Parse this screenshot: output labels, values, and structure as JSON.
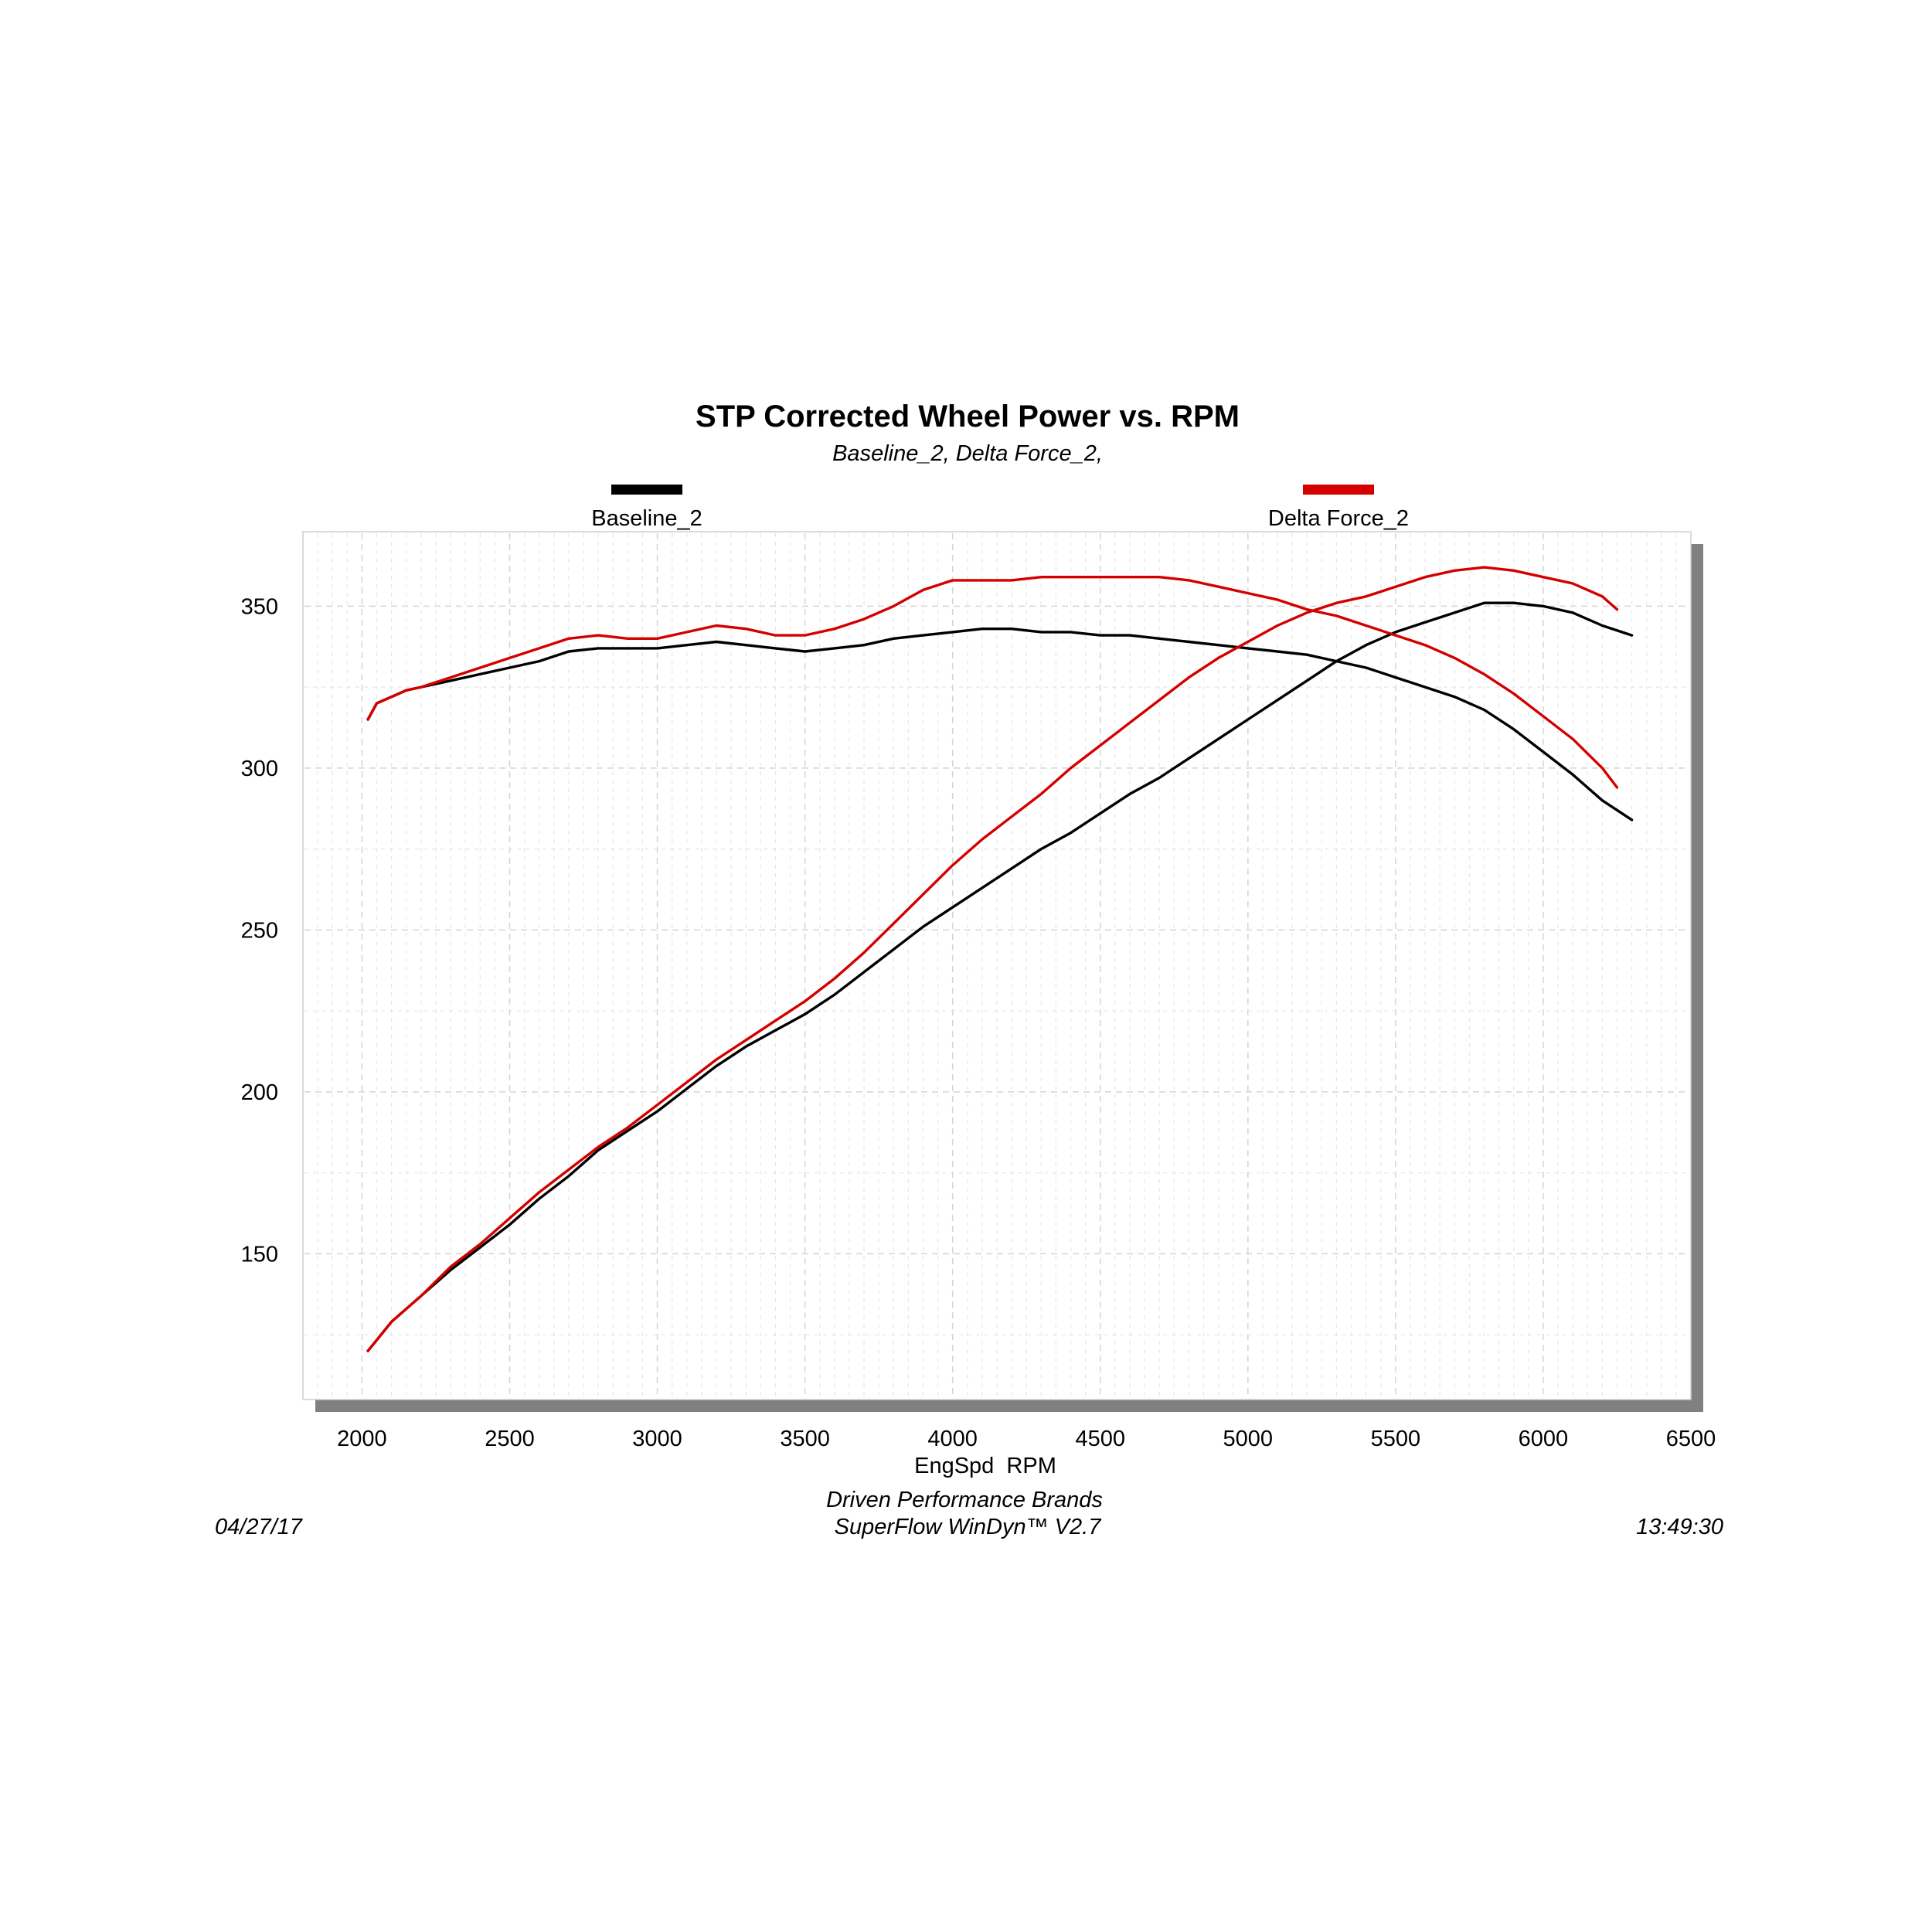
{
  "chart_data": {
    "type": "line",
    "title": "STP Corrected Wheel Power vs. RPM",
    "subtitle": "Baseline_2, Delta Force_2,",
    "xlabel": "EngSpd  RPM",
    "ylabel": "",
    "xlim": [
      1800,
      6500
    ],
    "ylim": [
      105,
      373
    ],
    "x_ticks": [
      2000,
      2500,
      3000,
      3500,
      4000,
      4500,
      5000,
      5500,
      6000,
      6500
    ],
    "y_ticks": [
      150,
      200,
      250,
      300,
      350
    ],
    "grid": true,
    "legend": "top",
    "series": [
      {
        "name": "Baseline_2",
        "color": "#000000",
        "curves": [
          {
            "x": [
              2020,
              2050,
              2100,
              2150,
              2200,
              2300,
              2400,
              2500,
              2600,
              2700,
              2800,
              2900,
              3000,
              3100,
              3200,
              3300,
              3400,
              3500,
              3600,
              3700,
              3800,
              3900,
              4000,
              4100,
              4200,
              4300,
              4400,
              4500,
              4600,
              4700,
              4800,
              4900,
              5000,
              5100,
              5200,
              5300,
              5400,
              5500,
              5600,
              5700,
              5800,
              5900,
              6000,
              6100,
              6200,
              6300
            ],
            "y": [
              315,
              320,
              322,
              324,
              325,
              327,
              329,
              331,
              333,
              336,
              337,
              337,
              337,
              338,
              339,
              338,
              337,
              336,
              337,
              338,
              340,
              341,
              342,
              343,
              343,
              342,
              342,
              341,
              341,
              340,
              339,
              338,
              337,
              336,
              335,
              333,
              331,
              328,
              325,
              322,
              318,
              312,
              305,
              298,
              290,
              284
            ]
          },
          {
            "x": [
              2020,
              2100,
              2200,
              2300,
              2400,
              2500,
              2600,
              2700,
              2800,
              2900,
              3000,
              3100,
              3200,
              3300,
              3400,
              3500,
              3600,
              3700,
              3800,
              3900,
              4000,
              4100,
              4200,
              4300,
              4400,
              4500,
              4600,
              4700,
              4800,
              4900,
              5000,
              5100,
              5200,
              5300,
              5400,
              5500,
              5600,
              5700,
              5800,
              5900,
              6000,
              6100,
              6200,
              6300
            ],
            "y": [
              120,
              129,
              137,
              145,
              152,
              159,
              167,
              174,
              182,
              188,
              194,
              201,
              208,
              214,
              219,
              224,
              230,
              237,
              244,
              251,
              257,
              263,
              269,
              275,
              280,
              286,
              292,
              297,
              303,
              309,
              315,
              321,
              327,
              333,
              338,
              342,
              345,
              348,
              351,
              351,
              350,
              348,
              344,
              341
            ]
          }
        ]
      },
      {
        "name": "Delta Force_2",
        "color": "#d40000",
        "curves": [
          {
            "x": [
              2020,
              2050,
              2100,
              2150,
              2200,
              2300,
              2400,
              2500,
              2600,
              2700,
              2800,
              2900,
              3000,
              3100,
              3200,
              3300,
              3400,
              3500,
              3600,
              3700,
              3800,
              3900,
              4000,
              4100,
              4200,
              4300,
              4400,
              4500,
              4600,
              4700,
              4800,
              4900,
              5000,
              5100,
              5200,
              5300,
              5400,
              5500,
              5600,
              5700,
              5800,
              5900,
              6000,
              6100,
              6200,
              6250
            ],
            "y": [
              315,
              320,
              322,
              324,
              325,
              328,
              331,
              334,
              337,
              340,
              341,
              340,
              340,
              342,
              344,
              343,
              341,
              341,
              343,
              346,
              350,
              355,
              358,
              358,
              358,
              359,
              359,
              359,
              359,
              359,
              358,
              356,
              354,
              352,
              349,
              347,
              344,
              341,
              338,
              334,
              329,
              323,
              316,
              309,
              300,
              294
            ]
          },
          {
            "x": [
              2020,
              2100,
              2200,
              2300,
              2400,
              2500,
              2600,
              2700,
              2800,
              2900,
              3000,
              3100,
              3200,
              3300,
              3400,
              3500,
              3600,
              3700,
              3800,
              3900,
              4000,
              4100,
              4200,
              4300,
              4400,
              4500,
              4600,
              4700,
              4800,
              4900,
              5000,
              5100,
              5200,
              5300,
              5400,
              5500,
              5600,
              5700,
              5800,
              5900,
              6000,
              6100,
              6200,
              6250
            ],
            "y": [
              120,
              129,
              137,
              146,
              153,
              161,
              169,
              176,
              183,
              189,
              196,
              203,
              210,
              216,
              222,
              228,
              235,
              243,
              252,
              261,
              270,
              278,
              285,
              292,
              300,
              307,
              314,
              321,
              328,
              334,
              339,
              344,
              348,
              351,
              353,
              356,
              359,
              361,
              362,
              361,
              359,
              357,
              353,
              349
            ]
          }
        ]
      }
    ]
  },
  "footer": {
    "date": "04/27/17",
    "company": "Driven Performance Brands",
    "software": "SuperFlow WinDyn™ V2.7",
    "time": "13:49:30"
  }
}
